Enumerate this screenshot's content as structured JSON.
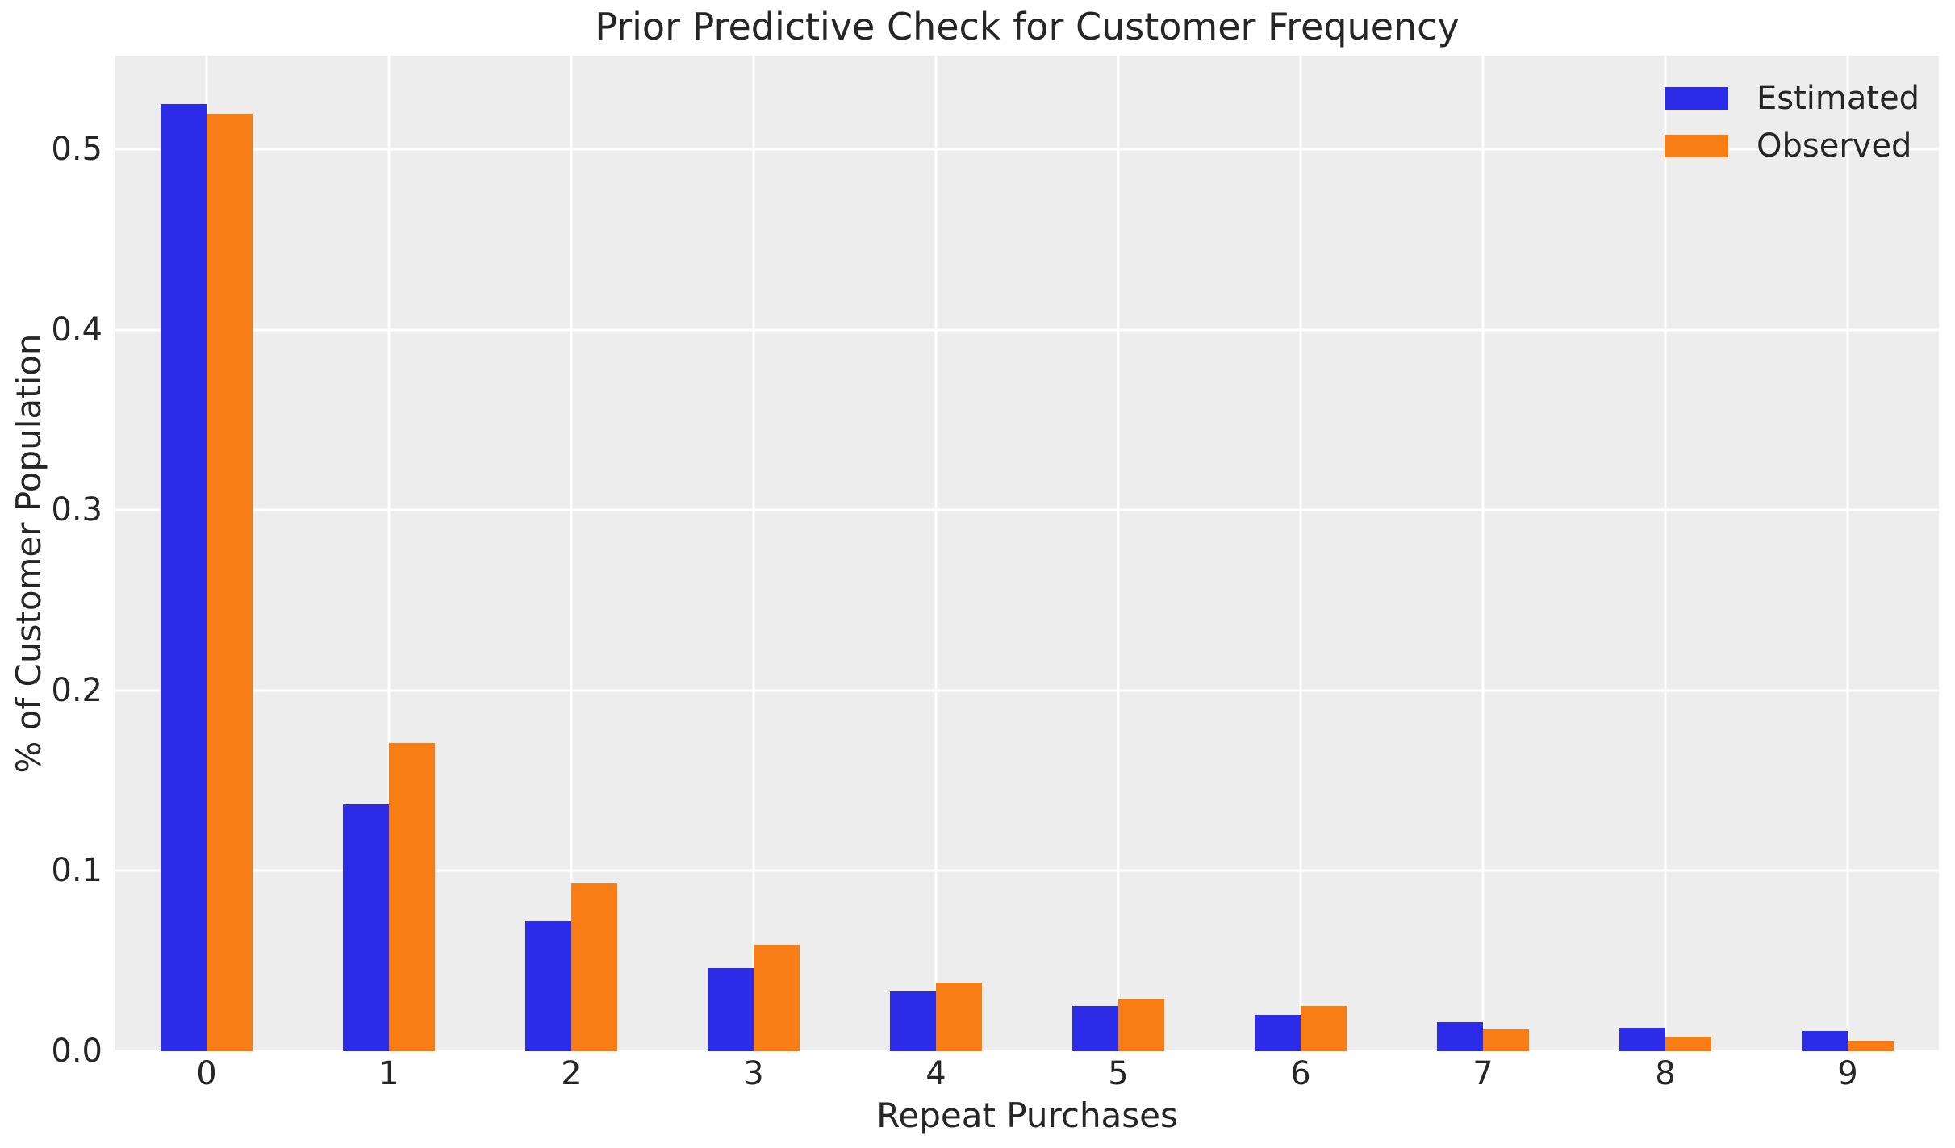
{
  "title": "Prior Predictive Check for Customer Frequency",
  "chart_data": {
    "type": "bar",
    "title": "Prior Predictive Check for Customer Frequency",
    "xlabel": "Repeat Purchases",
    "ylabel": "% of Customer Population",
    "categories": [
      "0",
      "1",
      "2",
      "3",
      "4",
      "5",
      "6",
      "7",
      "8",
      "9"
    ],
    "series": [
      {
        "name": "Estimated",
        "color": "#2b2be8",
        "values": [
          0.525,
          0.137,
          0.072,
          0.046,
          0.033,
          0.025,
          0.02,
          0.016,
          0.013,
          0.011
        ]
      },
      {
        "name": "Observed",
        "color": "#f87d14",
        "values": [
          0.52,
          0.171,
          0.093,
          0.059,
          0.038,
          0.029,
          0.025,
          0.012,
          0.008,
          0.006
        ]
      }
    ],
    "ylim": [
      0,
      0.552
    ],
    "yticks": [
      0.0,
      0.1,
      0.2,
      0.3,
      0.4,
      0.5
    ],
    "ytick_labels": [
      "0.0",
      "0.1",
      "0.2",
      "0.3",
      "0.4",
      "0.5"
    ],
    "grid": true,
    "grid_color": "#ffffff",
    "plot_bg": "#ededed",
    "text_color": "#262626",
    "legend_position": "upper right",
    "legend_entries": [
      "Estimated",
      "Observed"
    ]
  }
}
